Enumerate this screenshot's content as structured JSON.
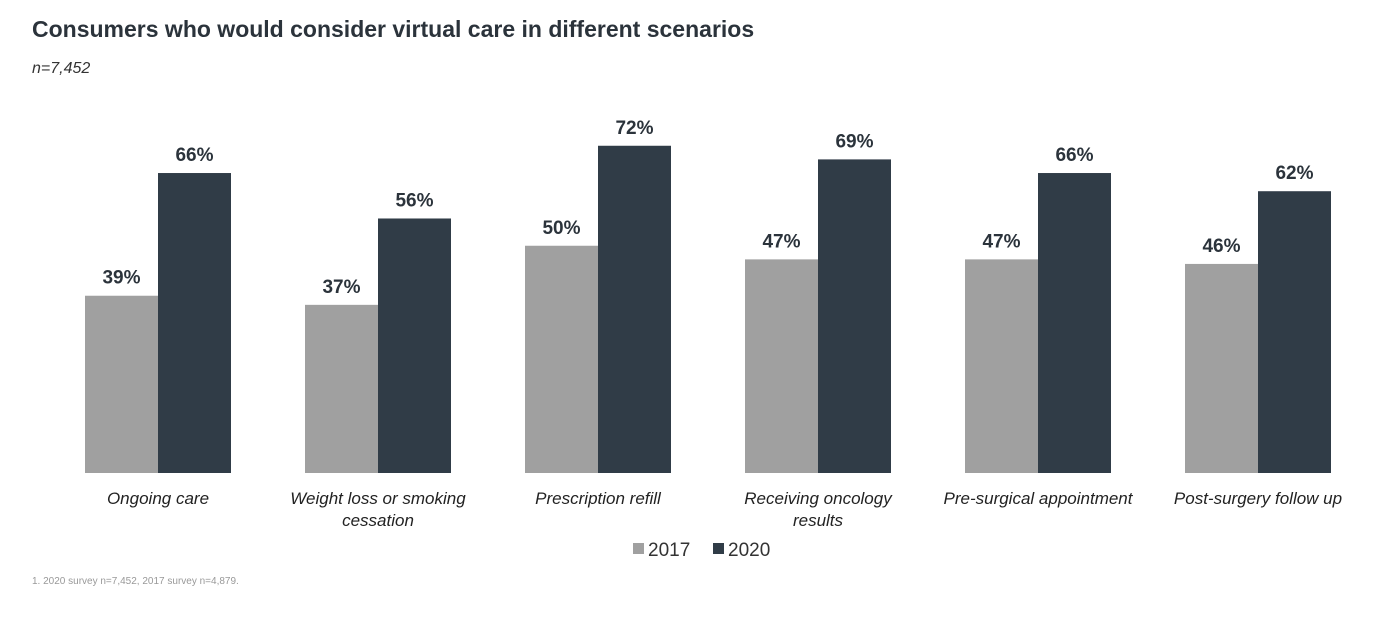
{
  "chart_data": {
    "type": "bar",
    "title": "Consumers who would consider virtual care in different scenarios",
    "subtitle": "n=7,452",
    "categories": [
      [
        "Ongoing care"
      ],
      [
        "Weight loss or smoking",
        "cessation"
      ],
      [
        "Prescription refill"
      ],
      [
        "Receiving oncology",
        "results"
      ],
      [
        "Pre-surgical appointment"
      ],
      [
        "Post-surgery follow up"
      ]
    ],
    "series": [
      {
        "name": "2017",
        "color": "#a0a0a0",
        "values": [
          39,
          37,
          50,
          47,
          47,
          46
        ]
      },
      {
        "name": "2020",
        "color": "#303c47",
        "values": [
          66,
          56,
          72,
          69,
          66,
          62
        ]
      }
    ],
    "value_suffix": "%",
    "ylim": [
      0,
      100
    ],
    "grid": false,
    "legend_position": "bottom-center",
    "footnote": "1.  2020 survey n=7,452, 2017 survey n=4,879."
  }
}
